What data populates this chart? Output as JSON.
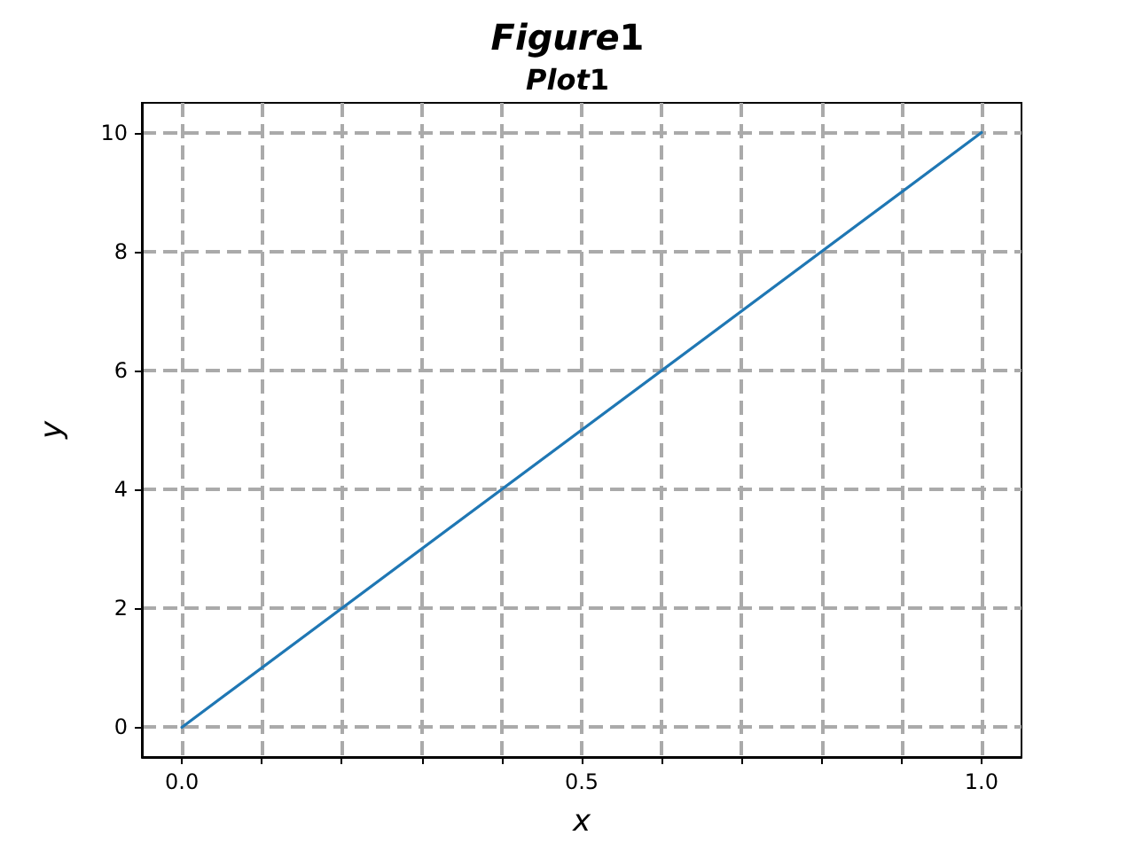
{
  "chart_data": {
    "type": "line",
    "title": "Figure1",
    "subtitle": "Plot1",
    "xlabel": "x",
    "ylabel": "y",
    "x": [
      0,
      1
    ],
    "series": [
      {
        "color": "#1f77b4",
        "values": [
          0,
          10
        ]
      }
    ],
    "xlim": [
      -0.05,
      1.05
    ],
    "xticks": [
      {
        "value": 0,
        "label": "0.0"
      },
      {
        "value": 0.1,
        "label": null
      },
      {
        "value": 0.2,
        "label": null
      },
      {
        "value": 0.3,
        "label": null
      },
      {
        "value": 0.4,
        "label": null
      },
      {
        "value": 0.5,
        "label": "0.5"
      },
      {
        "value": 0.6,
        "label": null
      },
      {
        "value": 0.7,
        "label": null
      },
      {
        "value": 0.8,
        "label": null
      },
      {
        "value": 0.9,
        "label": null
      },
      {
        "value": 1,
        "label": "1.0"
      }
    ],
    "ylim": [
      -0.5,
      10.5
    ],
    "yticks": [
      0,
      2,
      4,
      6,
      8,
      10
    ],
    "grid": true,
    "marker": "none",
    "line_style": "solid"
  }
}
